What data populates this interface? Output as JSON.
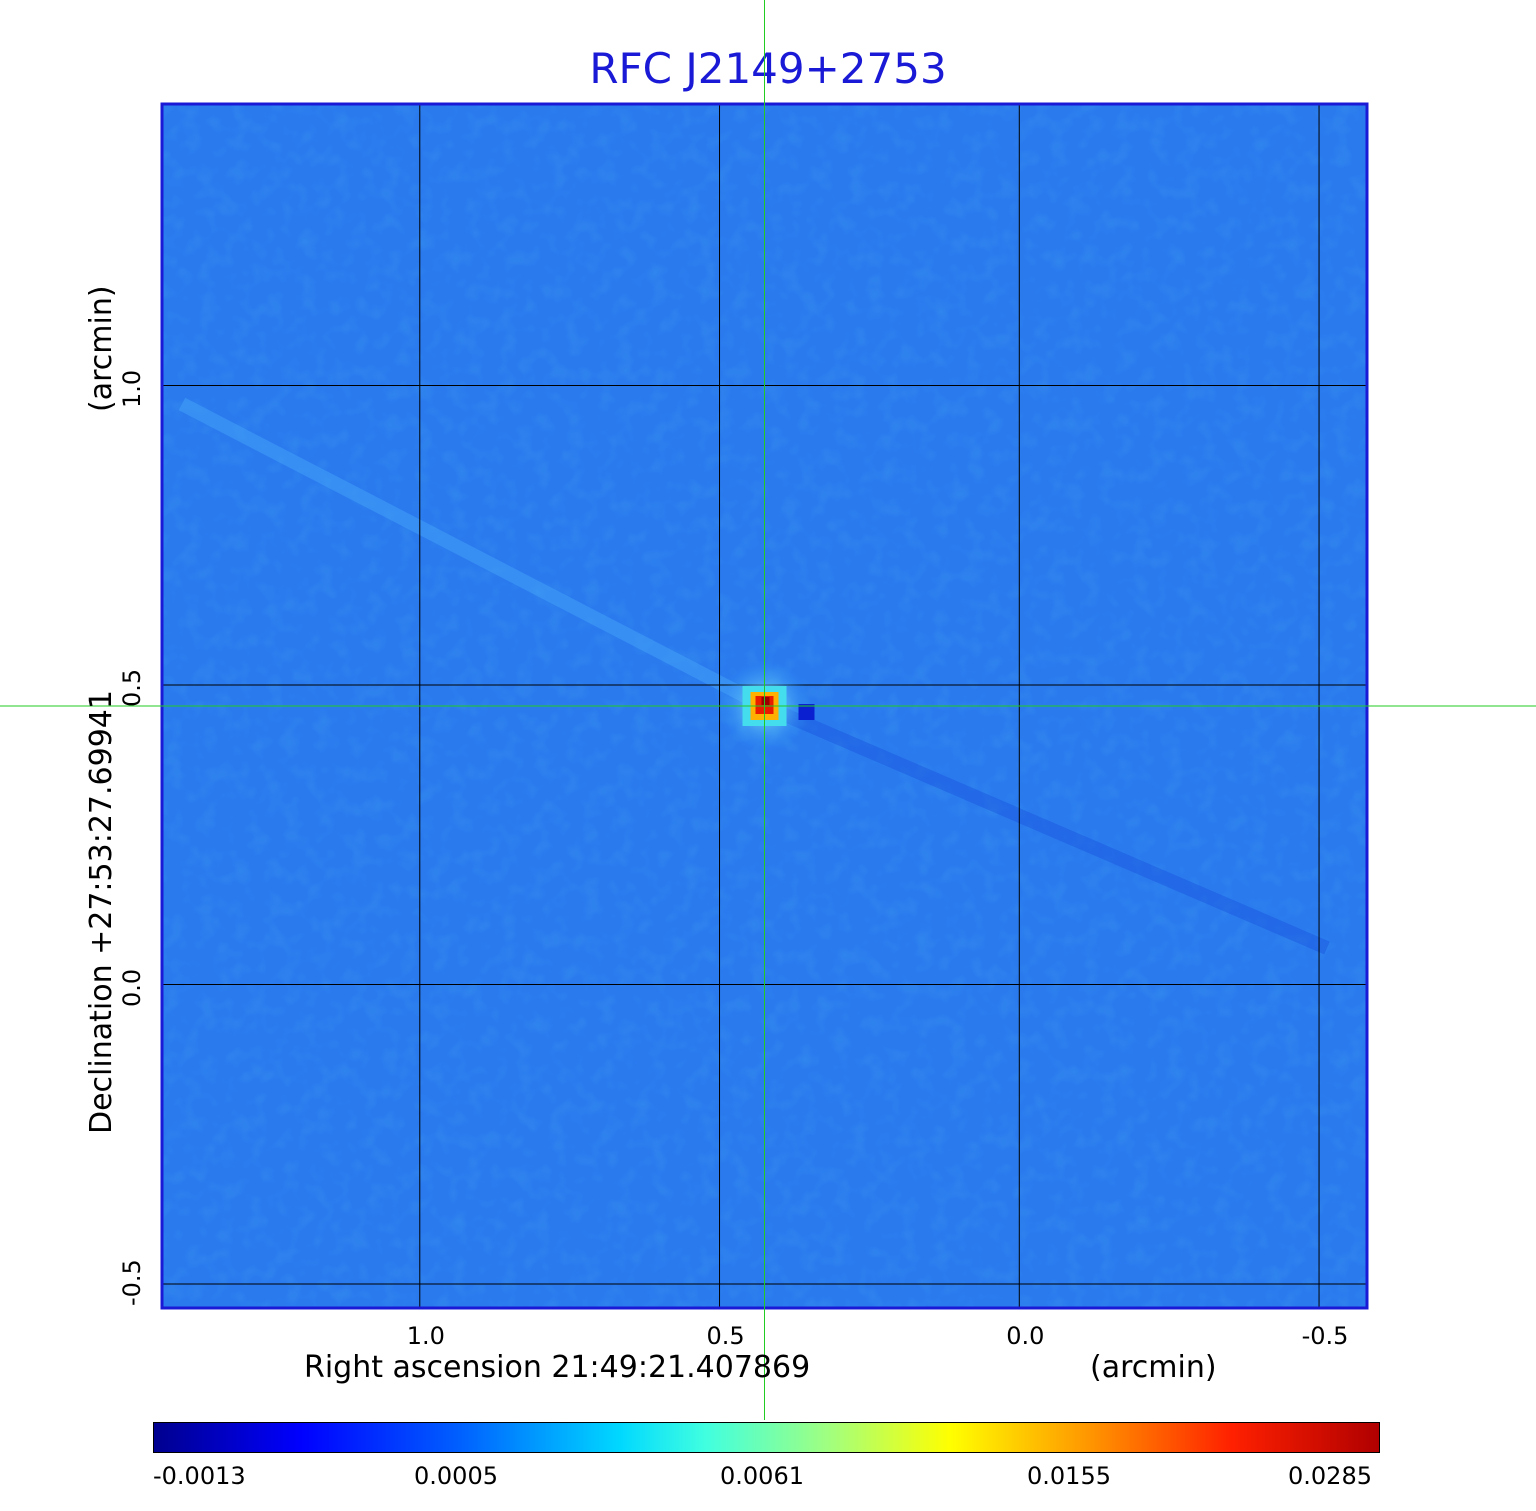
{
  "chart_data": {
    "type": "heatmap",
    "title": "RFC J2149+2753",
    "xlabel": "Right ascension  21:49:21.407869",
    "xunit": "(arcmin)",
    "ylabel": "Declination  +27:53:27.69941",
    "yunit": "(arcmin)",
    "x_ticks": [
      "1.0",
      "0.5",
      "0.0",
      "-0.5"
    ],
    "x_tick_values": [
      1.0,
      0.5,
      0.0,
      -0.5
    ],
    "y_ticks": [
      "1.0",
      "0.5",
      "0.0",
      "-0.5"
    ],
    "y_tick_values": [
      1.0,
      0.5,
      0.0,
      -0.5
    ],
    "xlim": [
      1.43,
      -0.58
    ],
    "ylim": [
      -0.54,
      1.47
    ],
    "grid": true,
    "crosshair": {
      "x": 0.425,
      "y": 0.465
    },
    "source_peak": {
      "x": 0.425,
      "y": 0.465,
      "value": 0.0285
    },
    "colorbar": {
      "labels": [
        "-0.0013",
        "0.0005",
        "0.0061",
        "0.0155",
        "0.0285"
      ],
      "values": [
        -0.0013,
        0.0005,
        0.0061,
        0.0155,
        0.0285
      ],
      "colormap": "jet"
    }
  },
  "colors": {
    "title": "#1a1ad6",
    "frame": "#1a1ad6",
    "background_field": "#2a7aee",
    "crosshair": "#22cc22",
    "grid": "#000000"
  }
}
